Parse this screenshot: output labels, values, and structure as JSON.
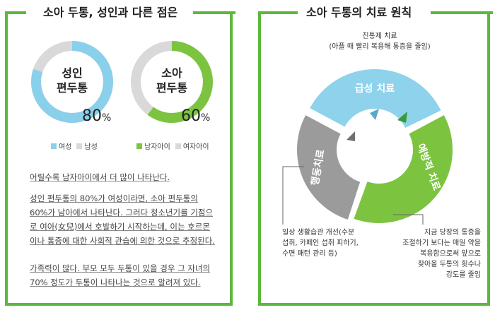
{
  "left": {
    "title": "소아 두통, 성인과 다른 점은",
    "donut1": {
      "line1": "성인",
      "line2": "편두통",
      "percent": "80",
      "unit": "%",
      "fraction": 0.8,
      "color": "#8bd0ea",
      "rest_color": "#d9d9d9"
    },
    "donut2": {
      "line1": "소아",
      "line2": "편두통",
      "percent": "60",
      "unit": "%",
      "fraction": 0.6,
      "color": "#7cc440",
      "rest_color": "#d9d9d9"
    },
    "legend1": {
      "a": "여성",
      "b": "남성"
    },
    "legend2": {
      "a": "남자아이",
      "b": "여자아이"
    },
    "p1": "어릴수록 남자아이에서 더 많이 나타난다.",
    "p2": [
      "성인 편두통의 80%가 여성이라면, 소아 편두통의",
      "60%가 남아에서 나타난다. 그러다 청소년기를 기점으",
      "로 여아(女兒)에서 호발하기 시작하는데, 이는 호르몬",
      "이나 통증에 대한 사회적 관습에 의한 것으로 추정된다."
    ],
    "p3": [
      "가족력이 많다. 부모 모두 두통이 있을 경우 그 자녀의",
      "70% 정도가 두통이 나타나는 것으로 알려져 있다."
    ]
  },
  "right": {
    "title": "소아 두통의 치료 원칙",
    "top_note": [
      "진통제 치료",
      "(아플 때 빨리 복용해 통증을 줄임)"
    ],
    "segments": {
      "acute": "급성 치료",
      "behavior": "행동치료",
      "prevent": "예방적 치료"
    },
    "colors": {
      "acute": "#8ed2ec",
      "behavior": "#9b9b9b",
      "prevent": "#7cc440"
    },
    "left_note": [
      "일상 생활습관 개선(수분",
      "섭취, 카페인 섭취 피하기,",
      "수면 패턴 관리 등)"
    ],
    "right_note": [
      "지금 당장의 통증을",
      "조절하기 보다는 매일 약을",
      "복용함으로써 앞으로",
      "찾아올 두통의 횟수나",
      "강도를 줄임"
    ]
  }
}
